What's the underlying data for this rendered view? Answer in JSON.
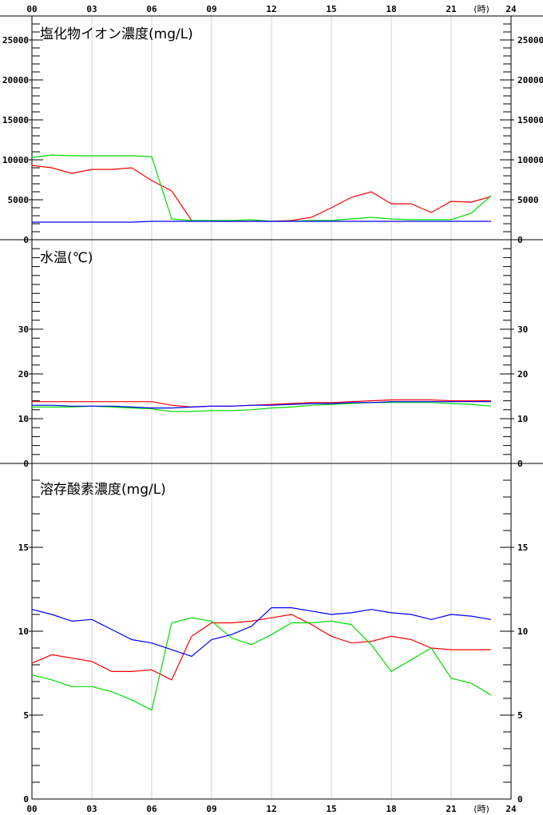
{
  "x_axis": {
    "ticks": [
      "00",
      "03",
      "06",
      "09",
      "12",
      "15",
      "18",
      "21",
      "24"
    ],
    "unit": "(時)"
  },
  "chart_data": [
    {
      "type": "line",
      "title": "塩化物イオン濃度(mg/L)",
      "ylim": [
        0,
        28000
      ],
      "yticks": [
        0,
        5000,
        10000,
        15000,
        20000,
        25000
      ],
      "series": [
        {
          "color": "#ff0000",
          "x": [
            0,
            1,
            2,
            3,
            4,
            5,
            6,
            7,
            8,
            9,
            10,
            11,
            12,
            13,
            14,
            15,
            16,
            17,
            18,
            19,
            20,
            21,
            22,
            23
          ],
          "values": [
            9300,
            9000,
            8300,
            8800,
            8800,
            9000,
            7400,
            6100,
            2400,
            2300,
            2300,
            2300,
            2300,
            2400,
            2800,
            4000,
            5300,
            6000,
            4500,
            4500,
            3400,
            4800,
            4700,
            5400
          ]
        },
        {
          "color": "#00dd00",
          "x": [
            0,
            1,
            2,
            3,
            4,
            5,
            6,
            7,
            8,
            9,
            10,
            11,
            12,
            13,
            14,
            15,
            16,
            17,
            18,
            19,
            20,
            21,
            22,
            23
          ],
          "values": [
            10300,
            10600,
            10500,
            10500,
            10500,
            10500,
            10400,
            2600,
            2400,
            2400,
            2400,
            2500,
            2300,
            2300,
            2400,
            2400,
            2600,
            2800,
            2600,
            2500,
            2500,
            2500,
            3300,
            5500
          ]
        },
        {
          "color": "#0000ff",
          "x": [
            0,
            1,
            2,
            3,
            4,
            5,
            6,
            7,
            8,
            9,
            10,
            11,
            12,
            13,
            14,
            15,
            16,
            17,
            18,
            19,
            20,
            21,
            22,
            23
          ],
          "values": [
            2200,
            2200,
            2200,
            2200,
            2200,
            2200,
            2300,
            2300,
            2300,
            2300,
            2300,
            2300,
            2300,
            2300,
            2300,
            2300,
            2300,
            2300,
            2300,
            2300,
            2300,
            2300,
            2300,
            2300
          ]
        }
      ]
    },
    {
      "type": "line",
      "title": "水温(℃)",
      "ylim": [
        0,
        50
      ],
      "yticks": [
        0,
        10,
        20,
        30
      ],
      "series": [
        {
          "color": "#ff0000",
          "x": [
            0,
            1,
            2,
            3,
            4,
            5,
            6,
            7,
            8,
            9,
            10,
            11,
            12,
            13,
            14,
            15,
            16,
            17,
            18,
            19,
            20,
            21,
            22,
            23
          ],
          "values": [
            13.8,
            13.8,
            13.8,
            13.8,
            13.8,
            13.8,
            13.8,
            13.0,
            12.6,
            12.8,
            12.8,
            13.0,
            13.2,
            13.4,
            13.6,
            13.6,
            13.8,
            14.0,
            14.2,
            14.2,
            14.2,
            14.0,
            14.0,
            14.0
          ]
        },
        {
          "color": "#00dd00",
          "x": [
            0,
            1,
            2,
            3,
            4,
            5,
            6,
            7,
            8,
            9,
            10,
            11,
            12,
            13,
            14,
            15,
            16,
            17,
            18,
            19,
            20,
            21,
            22,
            23
          ],
          "values": [
            12.6,
            12.6,
            12.6,
            12.8,
            12.6,
            12.4,
            12.2,
            11.6,
            11.6,
            11.8,
            11.8,
            12.0,
            12.4,
            12.6,
            13.0,
            13.2,
            13.4,
            13.6,
            13.6,
            13.6,
            13.6,
            13.4,
            13.2,
            12.8
          ]
        },
        {
          "color": "#0000ff",
          "x": [
            0,
            1,
            2,
            3,
            4,
            5,
            6,
            7,
            8,
            9,
            10,
            11,
            12,
            13,
            14,
            15,
            16,
            17,
            18,
            19,
            20,
            21,
            22,
            23
          ],
          "values": [
            13.0,
            13.0,
            12.8,
            12.8,
            12.8,
            12.6,
            12.4,
            12.4,
            12.6,
            12.8,
            12.8,
            13.0,
            13.0,
            13.2,
            13.4,
            13.4,
            13.6,
            13.6,
            13.8,
            13.8,
            13.8,
            13.8,
            13.8,
            13.8
          ]
        }
      ]
    },
    {
      "type": "line",
      "title": "溶存酸素濃度(mg/L)",
      "ylim": [
        0,
        20
      ],
      "yticks": [
        0,
        5,
        10,
        15
      ],
      "series": [
        {
          "color": "#ff0000",
          "x": [
            0,
            1,
            2,
            3,
            4,
            5,
            6,
            7,
            8,
            9,
            10,
            11,
            12,
            13,
            14,
            15,
            16,
            17,
            18,
            19,
            20,
            21,
            22,
            23
          ],
          "values": [
            8.1,
            8.6,
            8.4,
            8.2,
            7.6,
            7.6,
            7.7,
            7.1,
            9.7,
            10.5,
            10.5,
            10.6,
            10.8,
            11.0,
            10.4,
            9.7,
            9.3,
            9.4,
            9.7,
            9.5,
            9.0,
            8.9,
            8.9,
            8.9
          ]
        },
        {
          "color": "#00dd00",
          "x": [
            0,
            1,
            2,
            3,
            4,
            5,
            6,
            7,
            8,
            9,
            10,
            11,
            12,
            13,
            14,
            15,
            16,
            17,
            18,
            19,
            20,
            21,
            22,
            23
          ],
          "values": [
            7.4,
            7.1,
            6.7,
            6.7,
            6.4,
            5.9,
            5.3,
            10.5,
            10.8,
            10.6,
            9.6,
            9.2,
            9.8,
            10.5,
            10.5,
            10.6,
            10.4,
            9.2,
            7.6,
            8.3,
            9.0,
            7.2,
            6.9,
            6.2
          ]
        },
        {
          "color": "#0000ff",
          "x": [
            0,
            1,
            2,
            3,
            4,
            5,
            6,
            7,
            8,
            9,
            10,
            11,
            12,
            13,
            14,
            15,
            16,
            17,
            18,
            19,
            20,
            21,
            22,
            23
          ],
          "values": [
            11.3,
            11.0,
            10.6,
            10.7,
            10.1,
            9.5,
            9.3,
            8.9,
            8.5,
            9.5,
            9.8,
            10.3,
            11.4,
            11.4,
            11.2,
            11.0,
            11.1,
            11.3,
            11.1,
            11.0,
            10.7,
            11.0,
            10.9,
            10.7
          ]
        }
      ]
    }
  ]
}
